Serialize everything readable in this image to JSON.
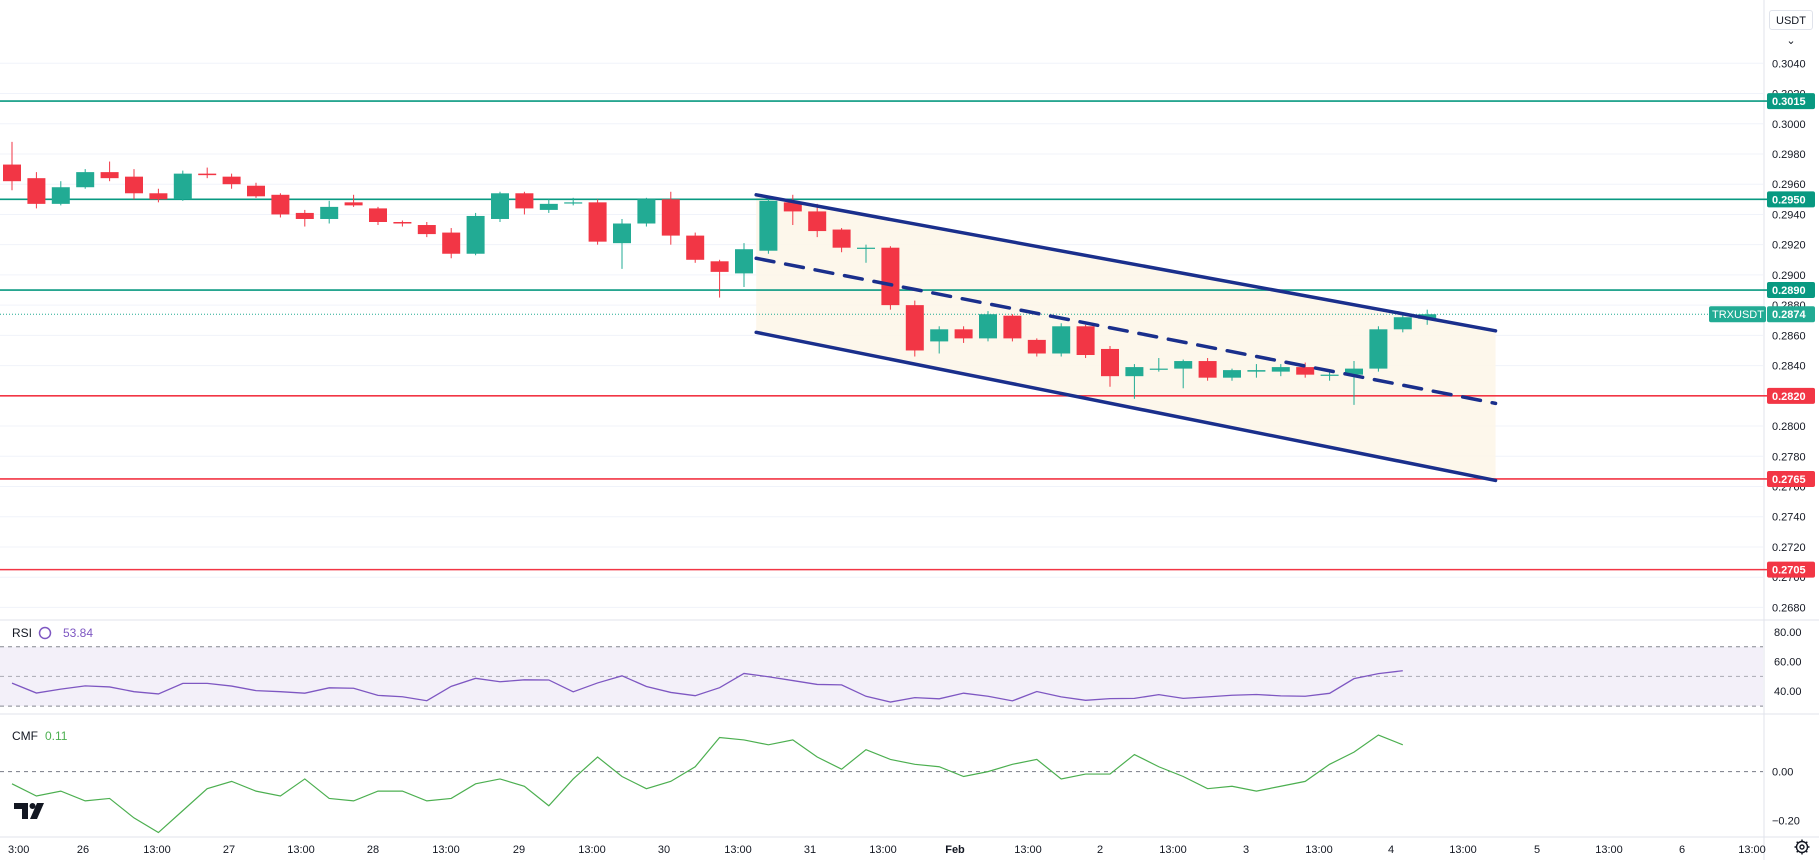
{
  "toolbar": {
    "currency_label": "USDT ⌄"
  },
  "colors": {
    "up": "#22ab94",
    "down": "#f23645",
    "channel": "#1a2f8c",
    "resistance": "#089981",
    "support": "#f23645",
    "rsi_line": "#7e57c2",
    "cmf_line": "#4caf50",
    "text": "#131722",
    "grid": "#f0f3fa"
  },
  "chart_data": [
    {
      "type": "candlestick",
      "symbol": "TRXUSDT",
      "price_axis": {
        "ticks": [
          "0.3040",
          "0.3020",
          "0.3000",
          "0.2980",
          "0.2960",
          "0.2940",
          "0.2920",
          "0.2900",
          "0.2880",
          "0.2860",
          "0.2840",
          "0.2820",
          "0.2800",
          "0.2780",
          "0.2760",
          "0.2740",
          "0.2720",
          "0.2700",
          "0.2680"
        ],
        "range": [
          0.2673,
          0.3066
        ]
      },
      "time_axis": [
        "3:00",
        "26",
        "13:00",
        "27",
        "13:00",
        "28",
        "13:00",
        "29",
        "13:00",
        "30",
        "13:00",
        "31",
        "13:00",
        "Feb",
        "13:00",
        "2",
        "13:00",
        "3",
        "13:00",
        "4",
        "13:00",
        "5",
        "13:00",
        "6",
        "13:00"
      ],
      "candles": [
        [
          0.2973,
          0.2988,
          0.2956,
          0.2962
        ],
        [
          0.2964,
          0.2968,
          0.2944,
          0.2947
        ],
        [
          0.2947,
          0.2962,
          0.2946,
          0.2958
        ],
        [
          0.2958,
          0.297,
          0.2957,
          0.2968
        ],
        [
          0.2968,
          0.2975,
          0.2962,
          0.2964
        ],
        [
          0.2965,
          0.297,
          0.295,
          0.2954
        ],
        [
          0.2954,
          0.2957,
          0.2948,
          0.295
        ],
        [
          0.295,
          0.2969,
          0.2949,
          0.2967
        ],
        [
          0.2967,
          0.2971,
          0.2964,
          0.2966
        ],
        [
          0.2965,
          0.2967,
          0.2957,
          0.296
        ],
        [
          0.2959,
          0.2961,
          0.2951,
          0.2952
        ],
        [
          0.2953,
          0.2954,
          0.2938,
          0.294
        ],
        [
          0.2941,
          0.2943,
          0.2932,
          0.2937
        ],
        [
          0.2937,
          0.2949,
          0.2934,
          0.2945
        ],
        [
          0.2948,
          0.2953,
          0.2945,
          0.2946
        ],
        [
          0.2944,
          0.2945,
          0.2933,
          0.2935
        ],
        [
          0.2935,
          0.2936,
          0.2932,
          0.2934
        ],
        [
          0.2933,
          0.2935,
          0.2925,
          0.2927
        ],
        [
          0.2928,
          0.2931,
          0.2911,
          0.2914
        ],
        [
          0.2914,
          0.2941,
          0.2913,
          0.2939
        ],
        [
          0.2937,
          0.2955,
          0.2935,
          0.2954
        ],
        [
          0.2954,
          0.2955,
          0.294,
          0.2944
        ],
        [
          0.2943,
          0.295,
          0.2941,
          0.2947
        ],
        [
          0.2948,
          0.2951,
          0.2946,
          0.2948
        ],
        [
          0.2948,
          0.295,
          0.292,
          0.2922
        ],
        [
          0.2921,
          0.2937,
          0.2904,
          0.2934
        ],
        [
          0.2934,
          0.2951,
          0.2932,
          0.295
        ],
        [
          0.295,
          0.2955,
          0.292,
          0.2926
        ],
        [
          0.2926,
          0.2928,
          0.2908,
          0.291
        ],
        [
          0.2909,
          0.291,
          0.2885,
          0.2902
        ],
        [
          0.2901,
          0.2921,
          0.2892,
          0.2917
        ],
        [
          0.2916,
          0.295,
          0.2914,
          0.2949
        ],
        [
          0.2948,
          0.2953,
          0.2933,
          0.2942
        ],
        [
          0.2942,
          0.2947,
          0.2925,
          0.2929
        ],
        [
          0.293,
          0.2931,
          0.2915,
          0.2918
        ],
        [
          0.2918,
          0.292,
          0.2908,
          0.2918
        ],
        [
          0.2918,
          0.2919,
          0.2877,
          0.288
        ],
        [
          0.288,
          0.2883,
          0.2846,
          0.285
        ],
        [
          0.2856,
          0.2866,
          0.2848,
          0.2864
        ],
        [
          0.2864,
          0.2866,
          0.2855,
          0.2858
        ],
        [
          0.2858,
          0.2876,
          0.2856,
          0.2874
        ],
        [
          0.2873,
          0.2874,
          0.2856,
          0.2858
        ],
        [
          0.2857,
          0.2858,
          0.2846,
          0.2848
        ],
        [
          0.2848,
          0.2868,
          0.2846,
          0.2866
        ],
        [
          0.2866,
          0.2867,
          0.2845,
          0.2847
        ],
        [
          0.2851,
          0.2853,
          0.2826,
          0.2833
        ],
        [
          0.2833,
          0.2841,
          0.2818,
          0.2839
        ],
        [
          0.2838,
          0.2845,
          0.2836,
          0.2838
        ],
        [
          0.2838,
          0.2844,
          0.2825,
          0.2843
        ],
        [
          0.2843,
          0.2845,
          0.283,
          0.2832
        ],
        [
          0.2832,
          0.2838,
          0.283,
          0.2837
        ],
        [
          0.2836,
          0.2841,
          0.2832,
          0.2837
        ],
        [
          0.2836,
          0.2841,
          0.2833,
          0.2839
        ],
        [
          0.2839,
          0.2842,
          0.2832,
          0.2834
        ],
        [
          0.2834,
          0.2837,
          0.283,
          0.2834
        ],
        [
          0.2834,
          0.2843,
          0.2814,
          0.2838
        ],
        [
          0.2838,
          0.2866,
          0.2836,
          0.2864
        ],
        [
          0.2864,
          0.2874,
          0.2862,
          0.2872
        ],
        [
          0.2871,
          0.2877,
          0.2867,
          0.2874
        ]
      ],
      "levels": [
        {
          "label": "0.3015",
          "value": 0.3015,
          "kind": "resistance"
        },
        {
          "label": "0.2950",
          "value": 0.295,
          "kind": "resistance"
        },
        {
          "label": "0.2890",
          "value": 0.289,
          "kind": "resistance"
        },
        {
          "label": "0.2820",
          "value": 0.282,
          "kind": "support"
        },
        {
          "label": "0.2765",
          "value": 0.2765,
          "kind": "support"
        },
        {
          "label": "0.2705",
          "value": 0.2705,
          "kind": "support"
        }
      ],
      "last_price": {
        "symbol_label": "TRXUSDT",
        "label": "0.2874",
        "value": 0.2874
      },
      "channel": {
        "upper": [
          [
            30.5,
            0.2953
          ],
          [
            60.8,
            0.2863
          ]
        ],
        "middle": [
          [
            30.5,
            0.2911
          ],
          [
            60.8,
            0.2815
          ]
        ],
        "lower": [
          [
            30.5,
            0.2862
          ],
          [
            60.8,
            0.2764
          ]
        ]
      }
    },
    {
      "type": "line",
      "indicator": "RSI",
      "label": "RSI",
      "value_label": "53.84",
      "ticks": [
        "80.00",
        "60.00",
        "40.00"
      ],
      "bands": [
        30,
        50,
        70
      ],
      "range": [
        26,
        84
      ],
      "values": [
        45.5,
        38.8,
        41.4,
        43.6,
        42.9,
        39.7,
        38.2,
        45.3,
        45.3,
        43.5,
        40.4,
        39.7,
        38.7,
        42.3,
        42.0,
        37.2,
        36.3,
        33.6,
        43.3,
        48.7,
        46.4,
        47.7,
        47.6,
        39.6,
        45.6,
        50.4,
        43.2,
        39.2,
        37.0,
        42.4,
        52.0,
        49.8,
        47.2,
        44.6,
        44.3,
        36.6,
        32.7,
        35.7,
        34.9,
        38.7,
        36.6,
        33.5,
        39.8,
        36.2,
        33.9,
        35.0,
        35.2,
        37.7,
        35.2,
        36.2,
        37.3,
        37.8,
        36.9,
        36.6,
        38.6,
        48.5,
        51.9,
        53.84
      ]
    },
    {
      "type": "line",
      "indicator": "CMF",
      "label": "CMF",
      "value_label": "0.11",
      "ticks": [
        "0.00",
        "−0.20"
      ],
      "zero_line": 0,
      "range": [
        -0.26,
        0.22
      ],
      "values": [
        -0.05,
        -0.1,
        -0.08,
        -0.12,
        -0.11,
        -0.19,
        -0.25,
        -0.16,
        -0.07,
        -0.04,
        -0.08,
        -0.1,
        -0.03,
        -0.11,
        -0.12,
        -0.08,
        -0.08,
        -0.12,
        -0.11,
        -0.05,
        -0.03,
        -0.06,
        -0.14,
        -0.03,
        0.06,
        -0.02,
        -0.07,
        -0.04,
        0.02,
        0.14,
        0.13,
        0.11,
        0.13,
        0.06,
        0.01,
        0.09,
        0.05,
        0.03,
        0.02,
        -0.02,
        0.0,
        0.03,
        0.05,
        -0.03,
        -0.01,
        -0.01,
        0.07,
        0.02,
        -0.02,
        -0.07,
        -0.06,
        -0.08,
        -0.06,
        -0.04,
        0.03,
        0.08,
        0.15,
        0.11
      ]
    }
  ]
}
